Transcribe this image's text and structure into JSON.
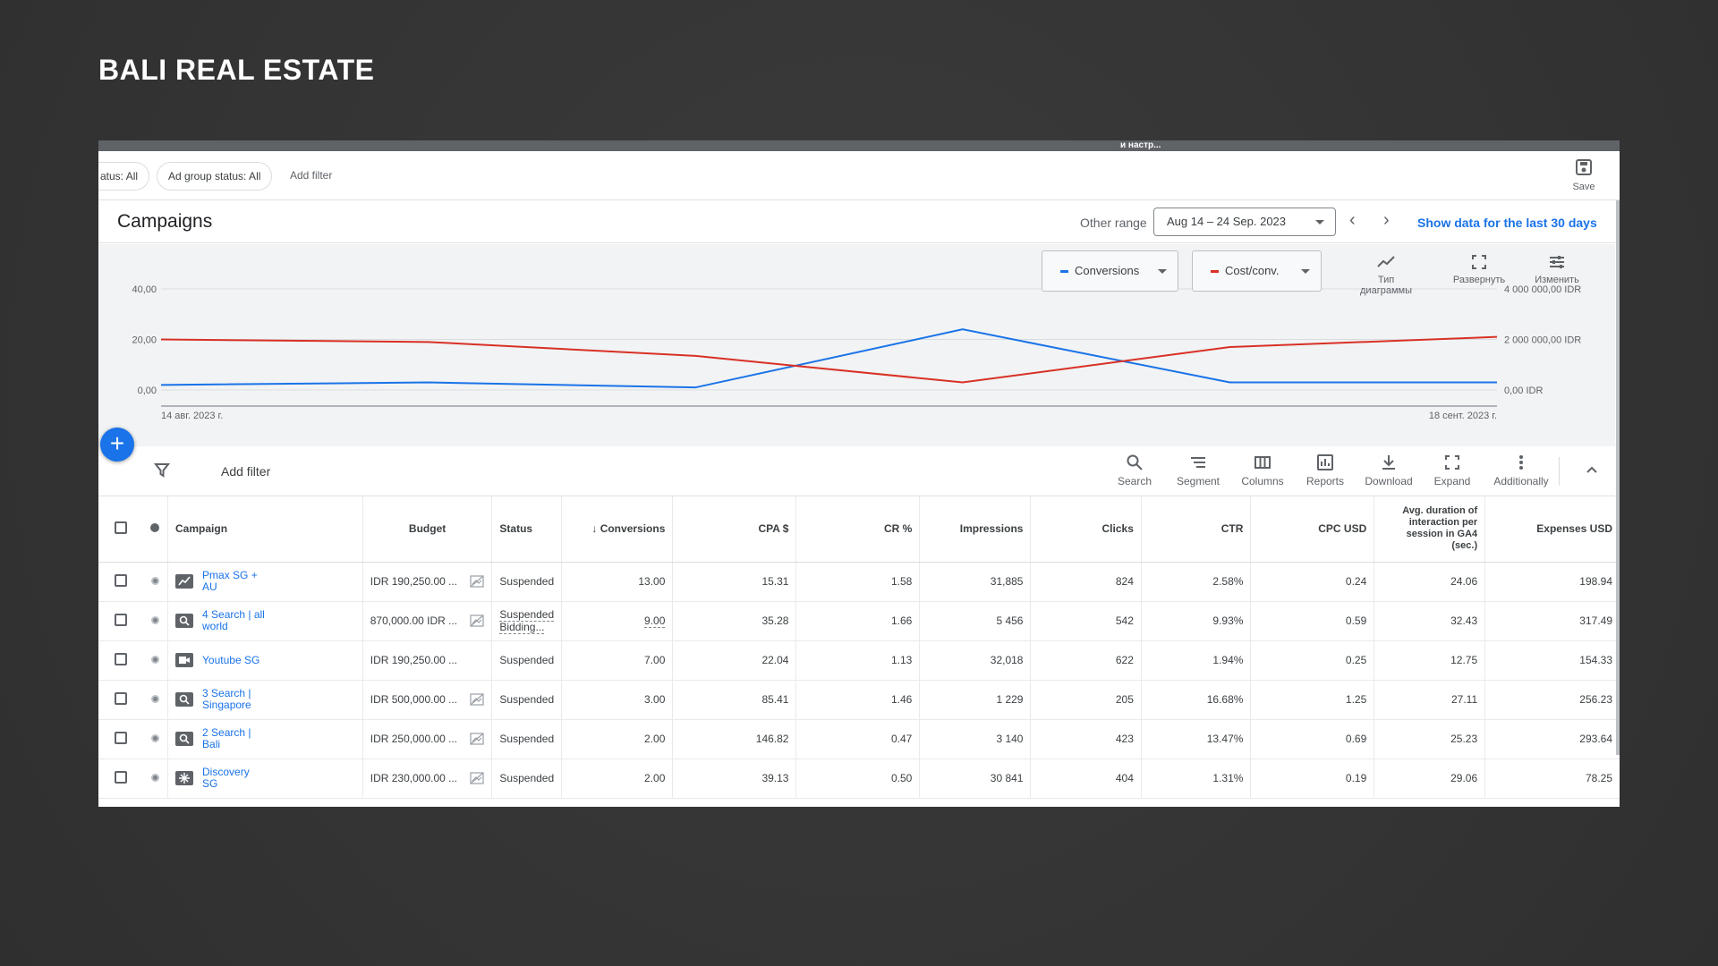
{
  "slide_title": "BALI REAL ESTATE",
  "top_strip_text": "и настр...",
  "filters": {
    "chip1": "atus: All",
    "chip2": "Ad group status: All",
    "add_filter": "Add filter",
    "save_label": "Save"
  },
  "header": {
    "title": "Campaigns",
    "other_range": "Other range",
    "date_range": "Aug 14 – 24 Sep. 2023",
    "show_30": "Show data for the last 30 days"
  },
  "chart_tools": {
    "metric1": "Conversions",
    "metric2": "Cost/conv.",
    "tool1_line1": "Тип",
    "tool1_line2": "диаграммы",
    "tool2": "Развернуть",
    "tool3": "Изменить"
  },
  "colors": {
    "conversions": "#1a73e8",
    "cost_conv": "#d93025",
    "accent": "#1a73e8"
  },
  "chart_data": {
    "type": "line",
    "x": [
      "14 авг. 2023 г.",
      "",
      "",
      "",
      "",
      "18 сент. 2023 г."
    ],
    "x_start_label": "14 авг. 2023 г.",
    "x_end_label": "18 сент. 2023 г.",
    "left_axis": {
      "ticks": [
        "40,00",
        "20,00",
        "0,00"
      ],
      "ylim": [
        0,
        40
      ]
    },
    "right_axis": {
      "ticks": [
        "4 000 000,00 IDR",
        "2 000 000,00 IDR",
        "0,00 IDR"
      ],
      "ylim": [
        0,
        4000000
      ]
    },
    "series": [
      {
        "name": "Conversions",
        "axis": "left",
        "values": [
          2,
          3,
          1,
          24,
          3,
          3
        ]
      },
      {
        "name": "Cost/conv.",
        "axis": "right",
        "values": [
          2000000,
          1900000,
          1350000,
          300000,
          1700000,
          2100000
        ]
      }
    ],
    "grid": true
  },
  "toolbar": {
    "add_filter": "Add filter",
    "items": [
      "Search",
      "Segment",
      "Columns",
      "Reports",
      "Download",
      "Expand",
      "Additionally"
    ]
  },
  "table": {
    "headers": {
      "campaign": "Campaign",
      "budget": "Budget",
      "status": "Status",
      "conversions": "Conversions",
      "cpa": "CPA $",
      "cr": "CR %",
      "impressions": "Impressions",
      "clicks": "Clicks",
      "ctr": "CTR",
      "cpc": "CPC USD",
      "avg_duration": "Avg. duration of interaction per session in GA4 (sec.)",
      "expenses": "Expenses USD"
    },
    "rows": [
      {
        "icon": "performance-max-icon",
        "campaign": "Pmax SG + AU",
        "budget": "IDR 190,250.00 ...",
        "status": "Suspended",
        "conversions": "13.00",
        "cpa": "15.31",
        "cr": "1.58",
        "impressions": "31,885",
        "clicks": "824",
        "ctr": "2.58%",
        "cpc": "0.24",
        "avg_duration": "24.06",
        "expenses": "198.94"
      },
      {
        "icon": "search-campaign-icon",
        "campaign": "4 Search | all world",
        "budget": "870,000.00 IDR ...",
        "status": "Suspended",
        "status2": "Bidding...",
        "conversions": "9.00",
        "cpa": "35.28",
        "cr": "1.66",
        "impressions": "5 456",
        "clicks": "542",
        "ctr": "9.93%",
        "cpc": "0.59",
        "avg_duration": "32.43",
        "expenses": "317.49"
      },
      {
        "icon": "video-campaign-icon",
        "campaign": "Youtube SG",
        "budget": "IDR 190,250.00 ...",
        "status": "Suspended",
        "conversions": "7.00",
        "cpa": "22.04",
        "cr": "1.13",
        "impressions": "32,018",
        "clicks": "622",
        "ctr": "1.94%",
        "cpc": "0.25",
        "avg_duration": "12.75",
        "expenses": "154.33"
      },
      {
        "icon": "search-campaign-icon",
        "campaign": "3 Search | Singapore",
        "budget": "IDR 500,000.00 ...",
        "status": "Suspended",
        "conversions": "3.00",
        "cpa": "85.41",
        "cr": "1.46",
        "impressions": "1 229",
        "clicks": "205",
        "ctr": "16.68%",
        "cpc": "1.25",
        "avg_duration": "27.11",
        "expenses": "256.23"
      },
      {
        "icon": "search-campaign-icon",
        "campaign": "2 Search | Bali",
        "budget": "IDR 250,000.00 ...",
        "status": "Suspended",
        "conversions": "2.00",
        "cpa": "146.82",
        "cr": "0.47",
        "impressions": "3 140",
        "clicks": "423",
        "ctr": "13.47%",
        "cpc": "0.69",
        "avg_duration": "25.23",
        "expenses": "293.64"
      },
      {
        "icon": "discovery-campaign-icon",
        "campaign": "Discovery SG",
        "budget": "IDR 230,000.00 ...",
        "status": "Suspended",
        "conversions": "2.00",
        "cpa": "39.13",
        "cr": "0.50",
        "impressions": "30 841",
        "clicks": "404",
        "ctr": "1.31%",
        "cpc": "0.19",
        "avg_duration": "29.06",
        "expenses": "78.25"
      }
    ]
  }
}
